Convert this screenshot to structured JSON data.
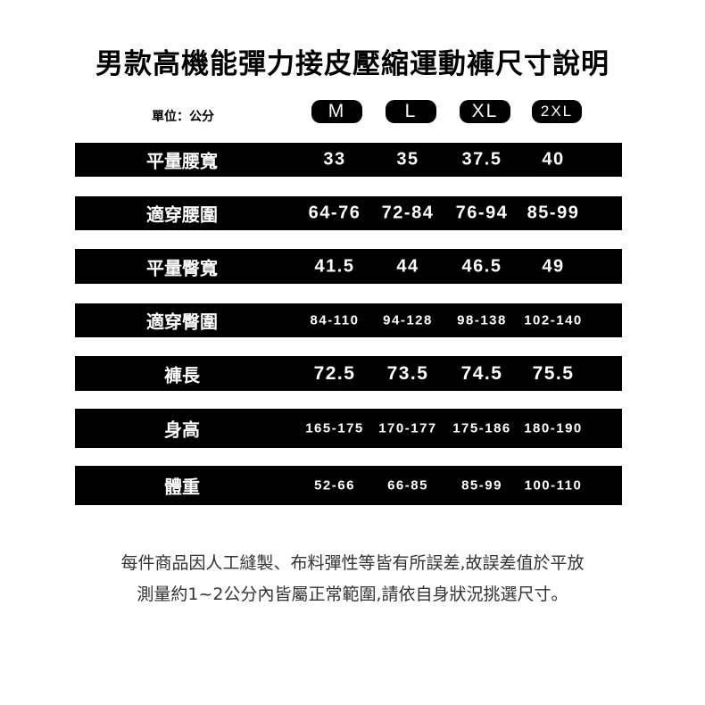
{
  "title": "男款高機能彈力接皮壓縮運動褲尺寸說明",
  "unit_label": "單位：公分",
  "sizes": [
    "M",
    "L",
    "XL",
    "2XL"
  ],
  "rows": [
    {
      "label": "平量腰寬",
      "values": [
        "33",
        "35",
        "37.5",
        "40"
      ]
    },
    {
      "label": "適穿腰圍",
      "values": [
        "64-76",
        "72-84",
        "76-94",
        "85-99"
      ]
    },
    {
      "label": "平量臀寬",
      "values": [
        "41.5",
        "44",
        "46.5",
        "49"
      ]
    },
    {
      "label": "適穿臀圍",
      "values": [
        "84-110",
        "94-128",
        "98-138",
        "102-140"
      ]
    },
    {
      "label": "褲長",
      "values": [
        "72.5",
        "73.5",
        "74.5",
        "75.5"
      ]
    },
    {
      "label": "身高",
      "values": [
        "165-175",
        "170-177",
        "175-186",
        "180-190"
      ]
    },
    {
      "label": "體重",
      "values": [
        "52-66",
        "66-85",
        "85-99",
        "100-110"
      ]
    }
  ],
  "note_lines": [
    "每件商品因人工縫製、布料彈性等皆有所誤差,故誤差值於平放",
    "測量約1~2公分內皆屬正常範圍,請依自身狀況挑選尺寸。"
  ]
}
